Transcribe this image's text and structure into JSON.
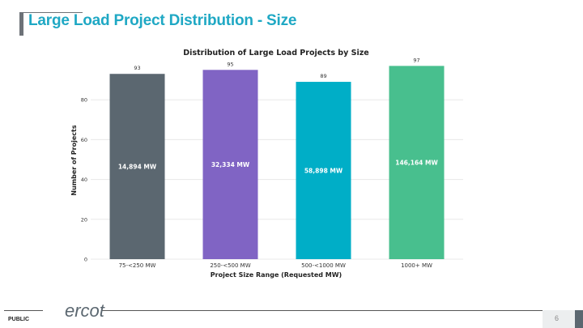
{
  "slide": {
    "title": "Large Load Project Distribution - Size",
    "classification": "PUBLIC",
    "logo_text": "ercot",
    "page_number": "6"
  },
  "chart_data": {
    "type": "bar",
    "title": "Distribution of Large Load Projects by Size",
    "xlabel": "Project Size Range (Requested MW)",
    "ylabel": "Number of Projects",
    "categories": [
      "75-<250 MW",
      "250-<500 MW",
      "500-<1000 MW",
      "1000+ MW"
    ],
    "values": [
      93,
      95,
      89,
      97
    ],
    "value_labels": [
      "93",
      "95",
      "89",
      "97"
    ],
    "mw_labels": [
      "14,894 MW",
      "32,334 MW",
      "58,898 MW",
      "146,164 MW"
    ],
    "colors": [
      "#5b6770",
      "#8064c4",
      "#00aec7",
      "#48bf8e"
    ],
    "ylim": [
      0,
      100
    ],
    "yticks": [
      0,
      20,
      40,
      60,
      80
    ],
    "grid": true
  }
}
